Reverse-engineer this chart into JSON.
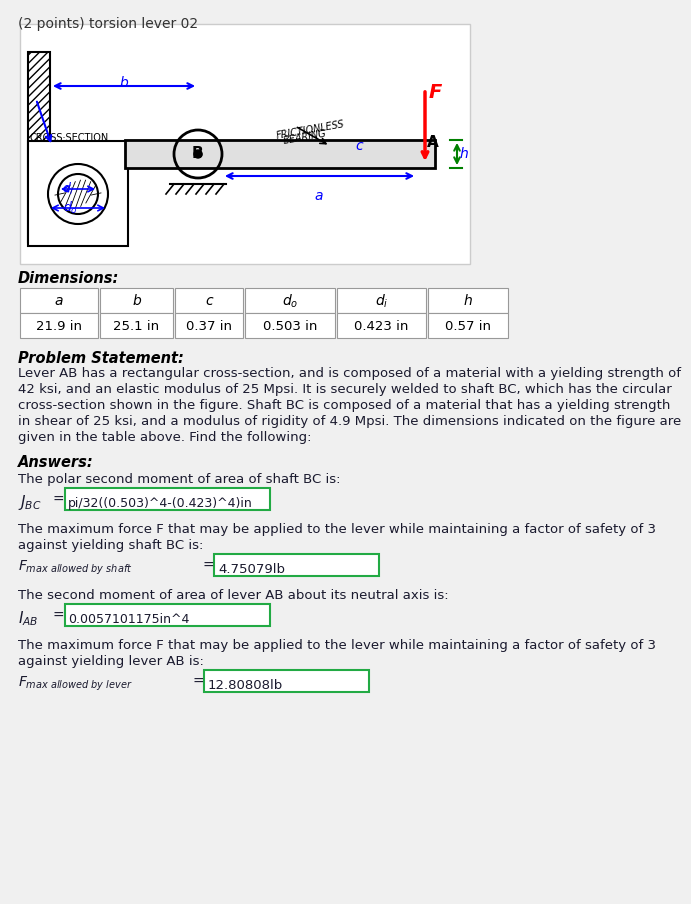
{
  "title": "(2 points) torsion lever 02",
  "bg_color": "#f0f0f0",
  "diagram_bg": "#ffffff",
  "dimensions_header": "Dimensions:",
  "table_headers": [
    "a",
    "b",
    "c",
    "d_o",
    "d_i",
    "h"
  ],
  "table_values": [
    "21.9 in",
    "25.1 in",
    "0.37 in",
    "0.503 in",
    "0.423 in",
    "0.57 in"
  ],
  "problem_header": "Problem Statement:",
  "problem_text": "Lever AB has a rectangular cross-section, and is composed of a material with a yielding strength of\n42 ksi, and an elastic modulus of 25 Mpsi. It is securely welded to shaft BC, which has the circular\ncross-section shown in the figure. Shaft BC is composed of a material that has a yielding strength\nin shear of 25 ksi, and a modulus of rigidity of 4.9 Mpsi. The dimensions indicated on the figure are\ngiven in the table above. Find the following:",
  "answers_header": "Answers:",
  "answer1_text": "The polar second moment of area of shaft BC is:",
  "answer1_value": "pi/32((0.503)^4-(0.423)^4)in",
  "answer2_text1": "The maximum force F that may be applied to the lever while maintaining a factor of safety of 3",
  "answer2_text2": "against yielding shaft BC is:",
  "answer2_value": "4.75079lb",
  "answer3_text": "The second moment of area of lever AB about its neutral axis is:",
  "answer3_value": "0.0057101175in^4",
  "answer4_text1": "The maximum force F that may be applied to the lever while maintaining a factor of safety of 3",
  "answer4_text2": "against yielding lever AB is:",
  "answer4_value": "12.80808lb"
}
